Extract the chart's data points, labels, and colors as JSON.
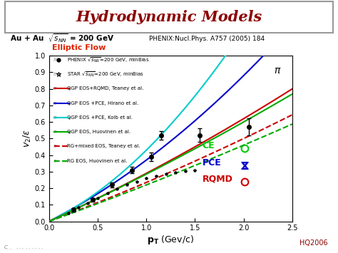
{
  "title": "Hydrodynamic Models",
  "xlim": [
    0,
    2.5
  ],
  "ylim": [
    0,
    1.0
  ],
  "phenix_data": {
    "x": [
      0.25,
      0.45,
      0.65,
      0.85,
      1.05,
      1.15,
      1.55,
      2.05
    ],
    "y": [
      0.07,
      0.13,
      0.22,
      0.31,
      0.39,
      0.52,
      0.52,
      0.57
    ],
    "yerr": [
      0.01,
      0.01,
      0.015,
      0.02,
      0.025,
      0.025,
      0.04,
      0.05
    ]
  },
  "star_data": {
    "x": [
      0.2,
      0.3,
      0.4,
      0.5,
      0.6,
      0.7,
      0.8,
      0.9,
      1.0,
      1.1,
      1.2,
      1.3,
      1.4,
      1.5
    ],
    "y": [
      0.05,
      0.085,
      0.11,
      0.14,
      0.17,
      0.195,
      0.22,
      0.24,
      0.26,
      0.275,
      0.285,
      0.295,
      0.305,
      0.31
    ]
  },
  "curves": [
    {
      "a": 0.27,
      "b": 0.02,
      "color": "#cc0000",
      "ls": "solid",
      "lw": 1.5
    },
    {
      "a": 0.3,
      "b": 0.07,
      "color": "#0000cc",
      "ls": "solid",
      "lw": 1.5
    },
    {
      "a": 0.28,
      "b": 0.15,
      "color": "#00cccc",
      "ls": "solid",
      "lw": 1.5
    },
    {
      "a": 0.27,
      "b": 0.015,
      "color": "#00aa00",
      "ls": "solid",
      "lw": 1.5
    },
    {
      "a": 0.22,
      "b": 0.015,
      "color": "#cc0000",
      "ls": "dashed",
      "lw": 1.5
    },
    {
      "a": 0.21,
      "b": 0.01,
      "color": "#00aa00",
      "ls": "dashed",
      "lw": 1.5
    }
  ],
  "legend_rows": [
    {
      "marker": "circle_filled",
      "color": "#000000",
      "text": "PHENIX $\\sqrt{s_{NN}}$=200 GeV, minBias"
    },
    {
      "marker": "star_open",
      "color": "#000000",
      "text": "STAR $\\sqrt{s_{NN}}$=200 GeV, minBias"
    },
    {
      "marker": "line",
      "color": "#cc0000",
      "ls": "solid",
      "text": "QGP EOS+RQMD, Teaney et al."
    },
    {
      "marker": "line",
      "color": "#0000cc",
      "ls": "solid",
      "text": "QGP EOS +PCE, Hirano et al."
    },
    {
      "marker": "line",
      "color": "#00cccc",
      "ls": "solid",
      "text": "QGP EOS +PCE, Kolb et al."
    },
    {
      "marker": "line",
      "color": "#00aa00",
      "ls": "solid",
      "text": "QGP EOS, Huovinen et al."
    },
    {
      "marker": "line",
      "color": "#cc0000",
      "ls": "dashed",
      "text": "RG+mixed EOS, Teaney et al."
    },
    {
      "marker": "line",
      "color": "#00aa00",
      "ls": "dashed",
      "text": "RG EOS, Huovinen et al."
    }
  ],
  "ce_color": "#00cc00",
  "pce_color": "#0000cc",
  "rqmd_color": "#cc0000"
}
